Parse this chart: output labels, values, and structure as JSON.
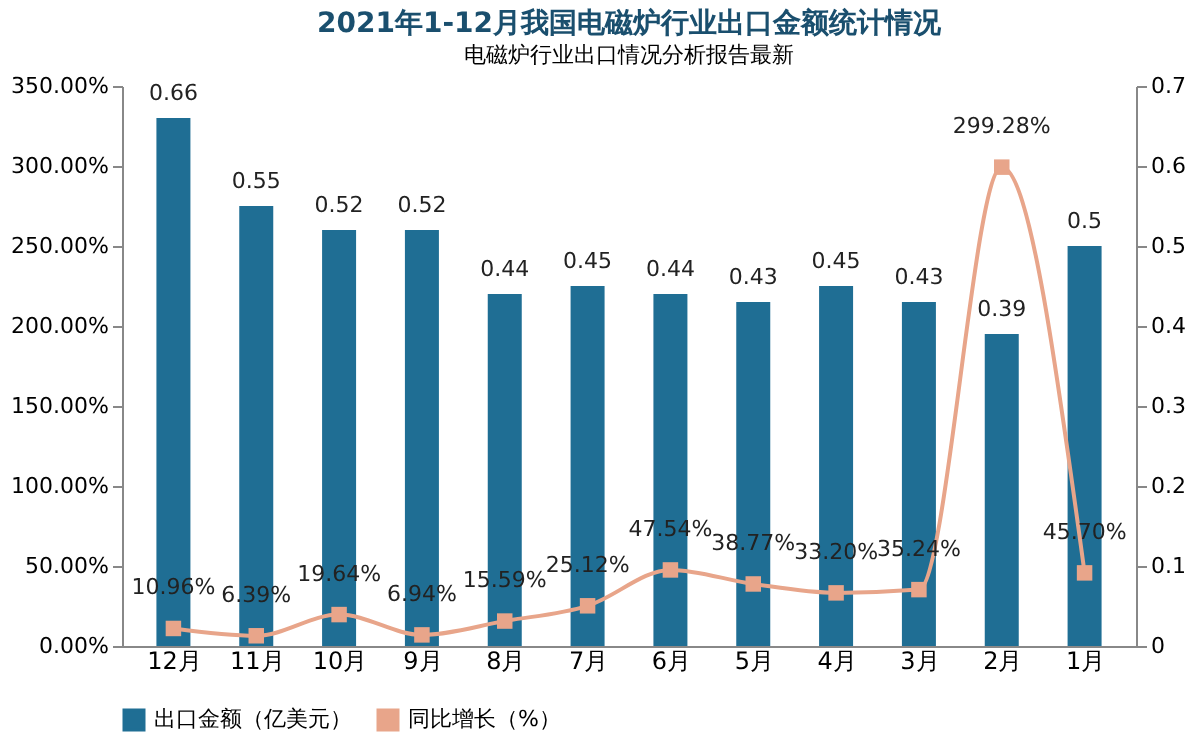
{
  "chart_data": {
    "type": "bar",
    "title": "2021年1-12月我国电磁炉行业出口金额统计情况",
    "categories": [
      "12月",
      "11月",
      "10月",
      "9月",
      "8月",
      "7月",
      "6月",
      "5月",
      "4月",
      "3月",
      "2月",
      "1月"
    ],
    "series": [
      {
        "name": "出口金额（亿美元）",
        "axis": "y2",
        "color": "#1f6e94",
        "values": [
          0.66,
          0.55,
          0.52,
          0.52,
          0.44,
          0.45,
          0.44,
          0.43,
          0.45,
          0.43,
          0.39,
          0.5
        ],
        "value_labels": [
          "0.66",
          "0.55",
          "0.52",
          "0.52",
          "0.44",
          "0.45",
          "0.44",
          "0.43",
          "0.45",
          "0.43",
          "0.39",
          "0.5"
        ]
      },
      {
        "name": "同比增长（%）",
        "type": "line",
        "color": "#e8a58a",
        "marker": "square",
        "values": [
          10.96,
          6.39,
          19.64,
          6.94,
          15.59,
          25.12,
          47.54,
          38.77,
          33.2,
          35.24,
          299.28,
          45.7
        ],
        "value_labels": [
          "10.96%",
          "6.39%",
          "19.64%",
          "6.94%",
          "15.59%",
          "25.12%",
          "47.54%",
          "38.77%",
          "33.20%",
          "35.24%",
          "299.28%",
          "45.70%"
        ]
      }
    ],
    "ylim": [
      0,
      350
    ],
    "yticks": [
      {
        "value": 0,
        "label": "0.00%"
      },
      {
        "value": 50,
        "label": "50.00%"
      },
      {
        "value": 100,
        "label": "100.00%"
      },
      {
        "value": 150,
        "label": "150.00%"
      },
      {
        "value": 200,
        "label": "200.00%"
      },
      {
        "value": 250,
        "label": "250.00%"
      },
      {
        "value": 300,
        "label": "300.00%"
      },
      {
        "value": 350,
        "label": "350.00%"
      }
    ],
    "y2lim": [
      0,
      0.7
    ],
    "y2ticks": [
      0,
      0.1,
      0.2,
      0.3,
      0.4,
      0.5,
      0.6,
      0.7
    ],
    "legend": "bottom",
    "grid": false,
    "annotations": [
      "电磁炉行业出口情况分析报告最新"
    ]
  }
}
